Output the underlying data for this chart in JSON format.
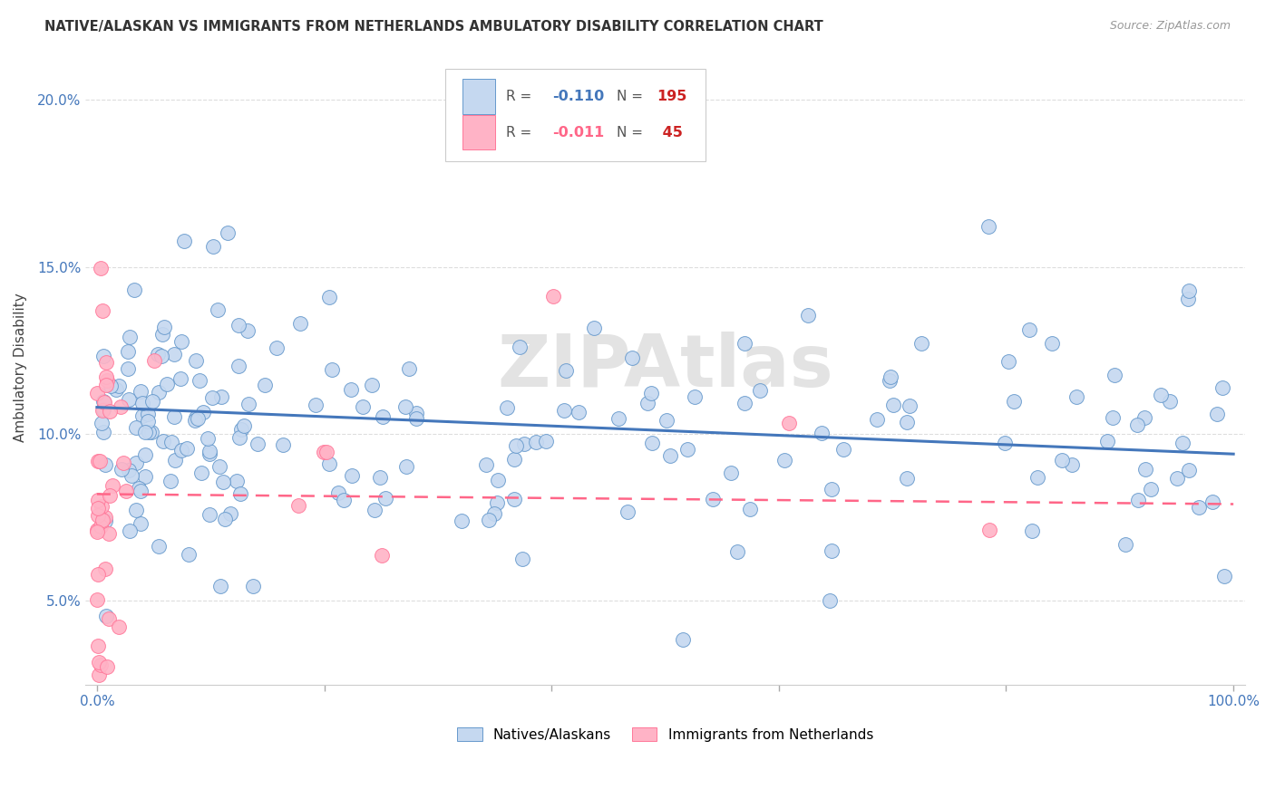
{
  "title": "NATIVE/ALASKAN VS IMMIGRANTS FROM NETHERLANDS AMBULATORY DISABILITY CORRELATION CHART",
  "source": "Source: ZipAtlas.com",
  "ylabel": "Ambulatory Disability",
  "yticks": [
    0.05,
    0.1,
    0.15,
    0.2
  ],
  "ytick_labels": [
    "5.0%",
    "10.0%",
    "15.0%",
    "20.0%"
  ],
  "xlim": [
    -0.01,
    1.01
  ],
  "ylim": [
    0.025,
    0.215
  ],
  "blue_R": -0.11,
  "blue_N": 195,
  "pink_R": -0.011,
  "pink_N": 45,
  "blue_fill_color": "#C5D8F0",
  "blue_edge_color": "#6699CC",
  "pink_fill_color": "#FFB3C6",
  "pink_edge_color": "#FF7799",
  "blue_line_color": "#4477BB",
  "pink_line_color": "#FF6688",
  "background_color": "#FFFFFF",
  "grid_color": "#DDDDDD",
  "axis_color": "#4477BB",
  "watermark": "ZIPAtlas",
  "blue_trend_x0": 0.0,
  "blue_trend_y0": 0.108,
  "blue_trend_x1": 1.0,
  "blue_trend_y1": 0.094,
  "pink_trend_x0": 0.0,
  "pink_trend_y0": 0.082,
  "pink_trend_x1": 1.0,
  "pink_trend_y1": 0.079
}
